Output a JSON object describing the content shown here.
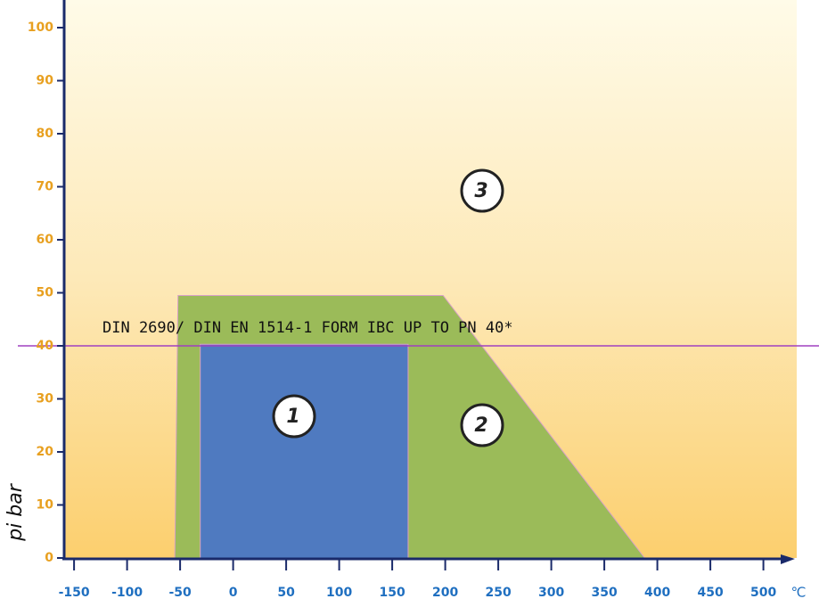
{
  "chart_data": {
    "type": "area",
    "ylabel": "pi bar",
    "xlabel": "℃",
    "xlim": [
      -160,
      530
    ],
    "ylim": [
      0,
      105
    ],
    "xticks": [
      -150,
      -100,
      -50,
      0,
      50,
      100,
      150,
      200,
      250,
      300,
      350,
      400,
      450,
      500
    ],
    "yticks": [
      0,
      10,
      20,
      30,
      40,
      50,
      60,
      70,
      80,
      90,
      100
    ],
    "series": [
      {
        "name": "2",
        "color": "#9bbb59",
        "x": [
          -55,
          -52,
          198,
          388
        ],
        "values": [
          0,
          49.5,
          49.5,
          0
        ]
      },
      {
        "name": "1",
        "color": "#4f7ac0",
        "x": [
          -31,
          -31,
          165,
          165
        ],
        "values": [
          0,
          40.3,
          40.3,
          0
        ]
      }
    ],
    "region_label": "3",
    "hline": {
      "value": 40,
      "label": "DIN 2690/ DIN EN 1514-1 FORM IBC UP TO PN 40*",
      "color": "#a040c0"
    }
  }
}
